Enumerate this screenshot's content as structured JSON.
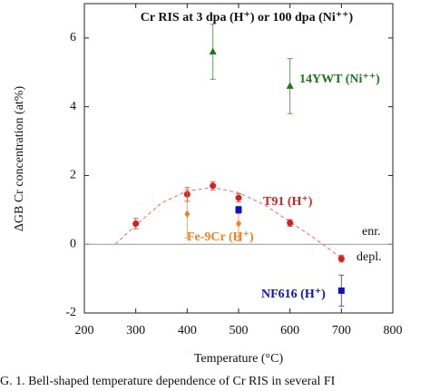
{
  "chart_data": {
    "type": "scatter",
    "title": "Cr RIS at 3 dpa (H⁺) or 100 dpa (Ni⁺⁺)",
    "x_label": "Temperature (°C)",
    "y_label": "ΔGB Cr concentration (at%)",
    "caption": "G. 1. Bell-shaped temperature dependence of Cr RIS in several FI",
    "annotations": [
      "enr.",
      "depl."
    ],
    "xlim": [
      200,
      800
    ],
    "xticks": [
      200,
      300,
      400,
      500,
      600,
      700,
      800
    ],
    "ylim": [
      -2,
      7
    ],
    "yticks": [
      -2,
      0,
      2,
      4,
      6
    ],
    "series": [
      {
        "name": "T91 (H⁺)",
        "color": "#d42020",
        "marker": "circle",
        "x": [
          300,
          400,
          450,
          500,
          600,
          700
        ],
        "values": [
          0.6,
          1.45,
          1.7,
          1.35,
          0.62,
          -0.42
        ],
        "errors": [
          0.15,
          0.2,
          0.12,
          0.12,
          0.1,
          0.1
        ]
      },
      {
        "name": "Fe-9Cr (H⁺)",
        "color": "#f08020",
        "marker": "diamond",
        "x": [
          400,
          500
        ],
        "values": [
          0.88,
          0.6
        ],
        "errors": [
          0.7,
          0.5
        ]
      },
      {
        "name": "NF616 (H⁺)",
        "color": "#1010c0",
        "marker": "square",
        "x": [
          500,
          700
        ],
        "values": [
          1.0,
          -1.35
        ],
        "errors": [
          0.1,
          0.45
        ]
      },
      {
        "name": "14YWT (Ni⁺⁺)",
        "color": "#1a7a1a",
        "marker": "triangle",
        "x": [
          450,
          600
        ],
        "values": [
          5.6,
          4.6
        ],
        "errors": [
          0.8,
          0.8
        ]
      }
    ],
    "fit": {
      "color": "#f08080",
      "x": [
        260,
        300,
        350,
        400,
        450,
        500,
        550,
        600,
        650,
        700
      ],
      "values": [
        0,
        0.55,
        1.2,
        1.55,
        1.65,
        1.5,
        1.15,
        0.65,
        0.15,
        -0.4
      ]
    }
  }
}
